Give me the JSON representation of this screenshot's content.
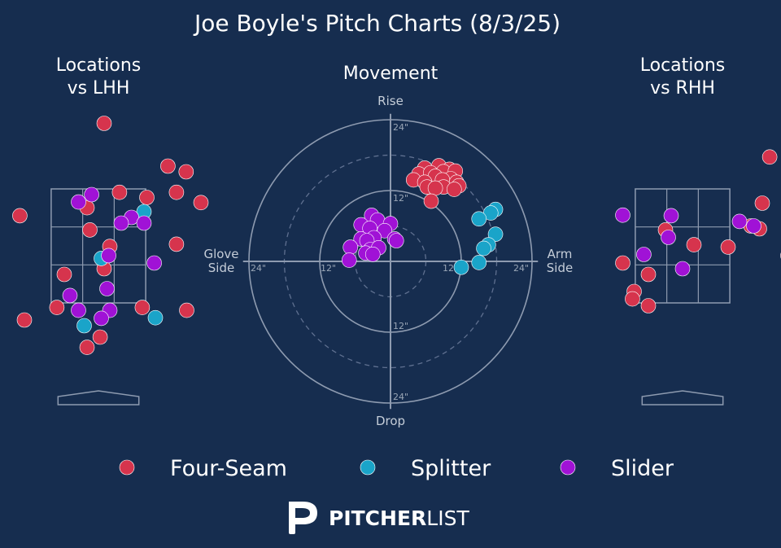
{
  "chart_data": {
    "type": "scatter",
    "title": "Joe Boyle's Pitch Charts (8/3/25)",
    "colors": {
      "background": "#162d4f",
      "Four-Seam": "#d6344d",
      "Splitter": "#1aa4c9",
      "Slider": "#a012d6",
      "grid": "#8e9bb0"
    },
    "legend": {
      "placement": "bottom",
      "entries": [
        "Four-Seam",
        "Splitter",
        "Slider"
      ]
    },
    "panels": {
      "lhh": {
        "title_line1": "Locations",
        "title_line2": "vs LHH",
        "x_range_ft": [
          -2.5,
          2.5
        ],
        "y_range_ft": [
          0,
          5.3
        ],
        "points": [
          {
            "pitch": "Four-Seam",
            "x": 0.1,
            "y": 5.05
          },
          {
            "pitch": "Four-Seam",
            "x": 1.22,
            "y": 4.3
          },
          {
            "pitch": "Four-Seam",
            "x": 1.54,
            "y": 4.2
          },
          {
            "pitch": "Four-Seam",
            "x": 0.37,
            "y": 3.84
          },
          {
            "pitch": "Four-Seam",
            "x": 1.37,
            "y": 3.84
          },
          {
            "pitch": "Four-Seam",
            "x": 0.85,
            "y": 3.75
          },
          {
            "pitch": "Four-Seam",
            "x": 1.8,
            "y": 3.66
          },
          {
            "pitch": "Four-Seam",
            "x": -0.2,
            "y": 3.57
          },
          {
            "pitch": "Four-Seam",
            "x": -1.38,
            "y": 3.43
          },
          {
            "pitch": "Four-Seam",
            "x": -0.15,
            "y": 3.18
          },
          {
            "pitch": "Four-Seam",
            "x": 0.2,
            "y": 2.89
          },
          {
            "pitch": "Four-Seam",
            "x": 1.37,
            "y": 2.93
          },
          {
            "pitch": "Four-Seam",
            "x": 0.1,
            "y": 2.5
          },
          {
            "pitch": "Four-Seam",
            "x": -0.6,
            "y": 2.4
          },
          {
            "pitch": "Four-Seam",
            "x": -0.73,
            "y": 1.82
          },
          {
            "pitch": "Four-Seam",
            "x": 0.77,
            "y": 1.82
          },
          {
            "pitch": "Four-Seam",
            "x": 1.55,
            "y": 1.77
          },
          {
            "pitch": "Four-Seam",
            "x": -1.3,
            "y": 1.6
          },
          {
            "pitch": "Four-Seam",
            "x": 0.03,
            "y": 1.3
          },
          {
            "pitch": "Four-Seam",
            "x": -0.2,
            "y": 1.12
          },
          {
            "pitch": "Splitter",
            "x": 0.05,
            "y": 2.68
          },
          {
            "pitch": "Splitter",
            "x": 0.8,
            "y": 3.5
          },
          {
            "pitch": "Splitter",
            "x": 1.0,
            "y": 1.64
          },
          {
            "pitch": "Splitter",
            "x": -0.25,
            "y": 1.5
          },
          {
            "pitch": "Splitter",
            "x": -2.08,
            "y": 1.33
          },
          {
            "pitch": "Splitter",
            "x": -2.05,
            "y": 0.76
          },
          {
            "pitch": "Slider",
            "x": -0.12,
            "y": 3.8
          },
          {
            "pitch": "Slider",
            "x": -0.35,
            "y": 3.67
          },
          {
            "pitch": "Slider",
            "x": 0.58,
            "y": 3.4
          },
          {
            "pitch": "Slider",
            "x": 0.4,
            "y": 3.3
          },
          {
            "pitch": "Slider",
            "x": 0.8,
            "y": 3.3
          },
          {
            "pitch": "Slider",
            "x": 0.18,
            "y": 2.73
          },
          {
            "pitch": "Slider",
            "x": 0.98,
            "y": 2.6
          },
          {
            "pitch": "Slider",
            "x": 0.15,
            "y": 2.15
          },
          {
            "pitch": "Slider",
            "x": -0.5,
            "y": 2.03
          },
          {
            "pitch": "Slider",
            "x": -0.35,
            "y": 1.77
          },
          {
            "pitch": "Slider",
            "x": 0.2,
            "y": 1.77
          },
          {
            "pitch": "Slider",
            "x": 0.05,
            "y": 1.63
          },
          {
            "pitch": "Slider",
            "x": -2.5,
            "y": 0.43
          }
        ]
      },
      "movement": {
        "title": "Movement",
        "label_top": "Rise",
        "label_bottom": "Drop",
        "label_left_1": "Glove",
        "label_left_2": "Side",
        "label_right_1": "Arm",
        "label_right_2": "Side",
        "ring_labels": [
          "24\"",
          "12\"",
          "12\"",
          "12\"",
          "12\"",
          "24\"",
          "24\"",
          "24\""
        ],
        "rings_in": [
          12,
          24
        ],
        "dashed_rings_in": [
          6,
          18
        ],
        "axis_limit_in": 25,
        "points": [
          {
            "pitch": "Four-Seam",
            "h": 5.8,
            "v": 15.8
          },
          {
            "pitch": "Four-Seam",
            "h": 8.2,
            "v": 16.2
          },
          {
            "pitch": "Four-Seam",
            "h": 10.0,
            "v": 15.6
          },
          {
            "pitch": "Four-Seam",
            "h": 4.8,
            "v": 14.8
          },
          {
            "pitch": "Four-Seam",
            "h": 6.8,
            "v": 15.0
          },
          {
            "pitch": "Four-Seam",
            "h": 9.0,
            "v": 15.2
          },
          {
            "pitch": "Four-Seam",
            "h": 11.0,
            "v": 15.3
          },
          {
            "pitch": "Four-Seam",
            "h": 7.6,
            "v": 14.4
          },
          {
            "pitch": "Four-Seam",
            "h": 10.2,
            "v": 14.0
          },
          {
            "pitch": "Four-Seam",
            "h": 3.9,
            "v": 13.8
          },
          {
            "pitch": "Four-Seam",
            "h": 5.8,
            "v": 13.4
          },
          {
            "pitch": "Four-Seam",
            "h": 8.8,
            "v": 13.8
          },
          {
            "pitch": "Four-Seam",
            "h": 11.2,
            "v": 13.4
          },
          {
            "pitch": "Four-Seam",
            "h": 6.2,
            "v": 12.6
          },
          {
            "pitch": "Four-Seam",
            "h": 9.0,
            "v": 12.6
          },
          {
            "pitch": "Four-Seam",
            "h": 11.6,
            "v": 12.8
          },
          {
            "pitch": "Four-Seam",
            "h": 10.8,
            "v": 12.2
          },
          {
            "pitch": "Four-Seam",
            "h": 7.6,
            "v": 12.4
          },
          {
            "pitch": "Four-Seam",
            "h": 6.9,
            "v": 10.2
          },
          {
            "pitch": "Splitter",
            "h": 17.8,
            "v": 8.8
          },
          {
            "pitch": "Splitter",
            "h": 17.0,
            "v": 8.2
          },
          {
            "pitch": "Splitter",
            "h": 15.0,
            "v": 7.2
          },
          {
            "pitch": "Splitter",
            "h": 17.8,
            "v": 4.6
          },
          {
            "pitch": "Splitter",
            "h": 16.6,
            "v": 2.8
          },
          {
            "pitch": "Splitter",
            "h": 15.8,
            "v": 2.2
          },
          {
            "pitch": "Splitter",
            "h": 15.0,
            "v": -0.2
          },
          {
            "pitch": "Splitter",
            "h": 12.0,
            "v": -1.0
          },
          {
            "pitch": "Slider",
            "h": -3.2,
            "v": 7.8
          },
          {
            "pitch": "Slider",
            "h": -2.2,
            "v": 7.0
          },
          {
            "pitch": "Slider",
            "h": -5.0,
            "v": 6.2
          },
          {
            "pitch": "Slider",
            "h": 0.0,
            "v": 6.4
          },
          {
            "pitch": "Slider",
            "h": -3.5,
            "v": 5.6
          },
          {
            "pitch": "Slider",
            "h": -1.0,
            "v": 5.2
          },
          {
            "pitch": "Slider",
            "h": -5.0,
            "v": 3.8
          },
          {
            "pitch": "Slider",
            "h": -2.8,
            "v": 4.0
          },
          {
            "pitch": "Slider",
            "h": 0.7,
            "v": 3.8
          },
          {
            "pitch": "Slider",
            "h": -4.0,
            "v": 3.5
          },
          {
            "pitch": "Slider",
            "h": 1.0,
            "v": 3.5
          },
          {
            "pitch": "Slider",
            "h": -6.8,
            "v": 2.4
          },
          {
            "pitch": "Slider",
            "h": -3.4,
            "v": 2.0
          },
          {
            "pitch": "Slider",
            "h": -2.0,
            "v": 2.3
          },
          {
            "pitch": "Slider",
            "h": -4.2,
            "v": 1.4
          },
          {
            "pitch": "Slider",
            "h": -3.0,
            "v": 1.2
          },
          {
            "pitch": "Slider",
            "h": -7.0,
            "v": 0.2
          }
        ]
      },
      "rhh": {
        "title_line1": "Locations",
        "title_line2": "vs RHH",
        "x_range_ft": [
          -2.5,
          2.5
        ],
        "y_range_ft": [
          0,
          5.3
        ],
        "points": [
          {
            "pitch": "Four-Seam",
            "x": 1.53,
            "y": 4.46
          },
          {
            "pitch": "Four-Seam",
            "x": 1.4,
            "y": 3.65
          },
          {
            "pitch": "Four-Seam",
            "x": 1.2,
            "y": 3.25
          },
          {
            "pitch": "Four-Seam",
            "x": 1.35,
            "y": 3.2
          },
          {
            "pitch": "Four-Seam",
            "x": -0.3,
            "y": 3.18
          },
          {
            "pitch": "Four-Seam",
            "x": 0.2,
            "y": 2.92
          },
          {
            "pitch": "Four-Seam",
            "x": 0.8,
            "y": 2.88
          },
          {
            "pitch": "Four-Seam",
            "x": 1.85,
            "y": 2.73
          },
          {
            "pitch": "Four-Seam",
            "x": -1.05,
            "y": 2.6
          },
          {
            "pitch": "Four-Seam",
            "x": -0.6,
            "y": 2.4
          },
          {
            "pitch": "Four-Seam",
            "x": -0.85,
            "y": 2.1
          },
          {
            "pitch": "Four-Seam",
            "x": -0.88,
            "y": 1.97
          },
          {
            "pitch": "Four-Seam",
            "x": -0.6,
            "y": 1.85
          },
          {
            "pitch": "Slider",
            "x": -0.2,
            "y": 3.43
          },
          {
            "pitch": "Slider",
            "x": 1.0,
            "y": 3.33
          },
          {
            "pitch": "Slider",
            "x": 1.25,
            "y": 3.25
          },
          {
            "pitch": "Slider",
            "x": -0.25,
            "y": 3.05
          },
          {
            "pitch": "Slider",
            "x": -0.68,
            "y": 2.75
          },
          {
            "pitch": "Slider",
            "x": 0.0,
            "y": 2.5
          },
          {
            "pitch": "Slider",
            "x": -1.05,
            "y": 3.44
          }
        ]
      }
    }
  },
  "branding": {
    "logo_name": "PitcherList logo",
    "text_bold": "PITCHER",
    "text_light": "LIST"
  }
}
